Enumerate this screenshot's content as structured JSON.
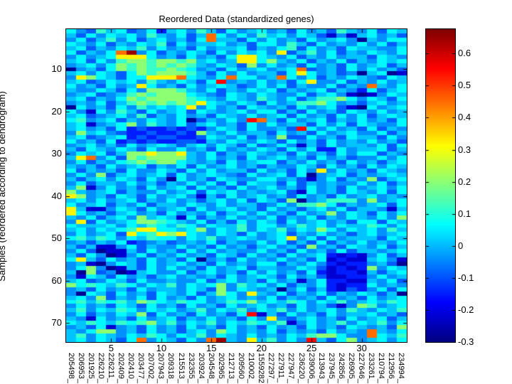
{
  "figure": {
    "title": "Reordered Data (standardized genes)",
    "y_axis_label": "Samples (reordered according to dendrogram)"
  },
  "chart_data": {
    "type": "heatmap",
    "title": "Reordered Data (standardized genes)",
    "xlabel": "",
    "ylabel": "Samples (reordered according to dendrogram)",
    "colormap": "jet",
    "grid": false,
    "n_rows": 74,
    "n_cols": 34,
    "x_tick_values": [
      5,
      10,
      15,
      20,
      25,
      30
    ],
    "y_tick_values": [
      10,
      20,
      30,
      40,
      50,
      60,
      70
    ],
    "x_gene_labels": [
      "205498_",
      "206953_",
      "201925_",
      "226210_",
      "226211_",
      "202409_",
      "202410_",
      "203477_",
      "207002_",
      "207943_",
      "209318_",
      "215513_",
      "232355_",
      "203924_",
      "204548_",
      "202965_",
      "212713_",
      "209560_",
      "210002_",
      "1559282",
      "227297_",
      "227911_",
      "227947_",
      "236220_",
      "239006_",
      "213943_",
      "237945_",
      "242856_",
      "226905_",
      "227646_",
      "233261_",
      "210794_",
      "212956_",
      "234994_"
    ],
    "colorbar": {
      "position": "right",
      "min": -0.3,
      "max": 0.676,
      "tick_labels": [
        "0.6",
        "0.5",
        "0.4",
        "0.3",
        "0.2",
        "0.1",
        "0",
        "-0.1",
        "-0.2",
        "-0.3"
      ],
      "tick_values": [
        0.6,
        0.5,
        0.4,
        0.3,
        0.2,
        0.1,
        0,
        -0.1,
        -0.2,
        -0.3
      ]
    },
    "value_levels": {
      "0": -0.28,
      "1": -0.22,
      "2": -0.15,
      "3": -0.09,
      "4": -0.04,
      "5": 0.01,
      "6": 0.06,
      "7": 0.12,
      "8": 0.2,
      "9": 0.32,
      "a": 0.45,
      "b": 0.55,
      "c": 0.65
    },
    "matrix_rows": [
      "6437563462564753645645364537546365",
      "53646564754635a6464756465314156453",
      "46357463564536a5536464536456405466",
      "6546354657364556453664753645464635",
      "5635465746453645563546736453655446",
      "63546ac4635465364656493574635 6546",
      "4645699964536453699654635464553654",
      "5636478878878564599685463546354656",
      "4564687878787546538464536453645635",
      "04536878778764536456456a3453646453",
      "5646536878887536464553696453405601",
      "49865366999a6546a6645a646354654365",
      "563465647546536b45464536944635 6454",
      "64536459645364565346463544635 a546",
      "5446536488875463546563545635426356",
      "4563457878886543654654463564101465",
      "5635468788887654654754635778646536",
      "4546357878787965465364577864535645",
      "0645364756569464536545364563106456",
      "6416475364563654564663536453654645",
      "5634564735464536546456364536463565",
      "674563546546035464ba53645635464536",
      "5614568475463564536464553646365446",
      "56453623223232465364453b6464536354",
      "4856432232232854645536453645644635",
      "5634562323322365463548336453655364",
      "6453623232233254654653645364546453",
      "4564536456535646536346415364554636",
      "5365465364464536454653646226455635",
      "4656358898895463546545364536466354",
      "59a46387888854645364564536453 4646",
      "4635467878865453645663546453645356",
      "5453645635463645645354465364536465",
      "6354536446536464553645364946453654",
      "4648356456364565436456360456354565",
      "5356465364064536544664531463548356",
      "4635546453546463636553635454464635",
      "5814645364563645364564536453645646",
      "8545635446456365645456316453654636",
      "9845365364564153645645364536456454",
      "56464563546453564636538045777 8456",
      "6456354635546546455346477863545636",
      "9511465364563645645364535646355415",
      "9645356453645463564645364584653646",
      "5463564856516354645463546354654648",
      "4936456887654635364653645645366365",
      "6555646576576465574664575646557646",
      "5646567996656846574657465864656475",
      "4645639679896546536456354645356456",
      "6757646576646574565456946364555365",
      "4535462345345463544646353635464546",
      "5351146354464536453564538453654635",
      "4630115364536464544645364536355456",
      "5364014635464536536453645621214635",
      "6953645364536045364546453612115641",
      "4510465364564536454663546421224530",
      "4684015364645364563554465312128465",
      "5083401564463564536464536212215356",
      "4165364535645453645653645311224645",
      "5634653644544635645364514622115463",
      "8676576465746568475646354621226454",
      "4536453645546538465450463521324636",
      "4065364536546358649546354635465350",
      "5648354636453645645463545364536456",
      "6757675876576645768565764657456576",
      "4645365364536453645645364531487456",
      "5746576465645746574657464564754657",
      "463546583645364536b153645364556453",
      "5416453645635464536494356453645635",
      "6576576785746574657657146457465746",
      "4536145364536453645364536453654538",
      "54688453645356486454635453645 a546",
      "57465465764657465464546578864 a657",
      "5646536a465364ac54957464b536845646"
    ]
  }
}
